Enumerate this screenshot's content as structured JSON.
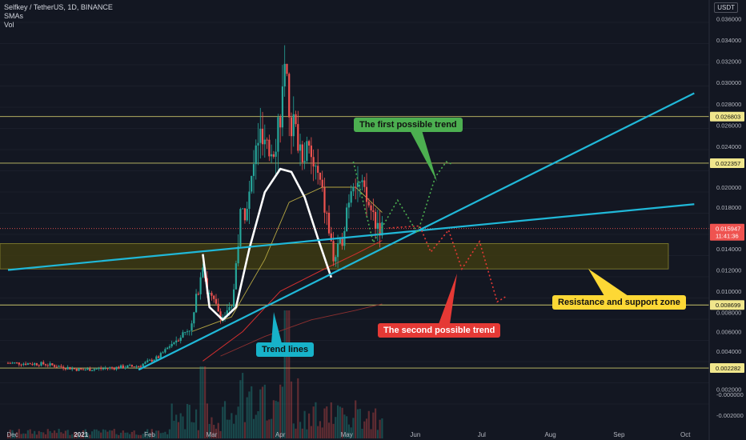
{
  "header": {
    "symbol": "Selfkey / TetherUS, 1D, BINANCE",
    "indicator1": "SMAs",
    "indicator2": "Vol"
  },
  "currency_button": "USDT",
  "annotations": {
    "first_trend": "The first possible trend",
    "second_trend": "The second possible trend",
    "trend_lines": "Trend lines",
    "zone": "Resistance and support zone"
  },
  "colors": {
    "background": "#131722",
    "up": "#26a69a",
    "down": "#ef5350",
    "trendline": "#20b8d8",
    "hline": "#c8c46a",
    "zone": "#3d3a12",
    "first_trend": "#4caf50",
    "second_trend": "#e53935",
    "zone_label": "#fdd835",
    "trend_label": "#17b2c9"
  },
  "chart_data": {
    "type": "candlestick",
    "title": "Selfkey / TetherUS, 1D, BINANCE",
    "x_ticks": [
      "Dec",
      "2021",
      "Feb",
      "Mar",
      "Apr",
      "May",
      "Jun",
      "Jul",
      "Aug",
      "Sep",
      "Oct"
    ],
    "y_ticks": [
      "0.036000",
      "0.034000",
      "0.032000",
      "0.030000",
      "0.028000",
      "0.026000",
      "0.024000",
      "0.020000",
      "0.018000",
      "0.014000",
      "0.012000",
      "0.010000",
      "0.008000",
      "0.006000",
      "0.004000",
      "0.002000",
      "0.000000",
      "-0.000000",
      "-0.002000"
    ],
    "ylim": [
      -0.0025,
      0.0365
    ],
    "horizontal_levels": [
      {
        "label": "0.026803",
        "value": 0.026803
      },
      {
        "label": "0.022357",
        "value": 0.022357
      },
      {
        "label": "0.008699",
        "value": 0.008699
      },
      {
        "label": "0.002282",
        "value": 0.002282
      }
    ],
    "current_price": {
      "label": "0.015947",
      "countdown": "11:41:36",
      "value": 0.015947
    },
    "zone": {
      "low": 0.0121,
      "high": 0.0145
    },
    "price_path": [
      [
        "2020-11-29",
        0.0028
      ],
      [
        "2020-12-15",
        0.0027
      ],
      [
        "2021-01-01",
        0.0021
      ],
      [
        "2021-01-15",
        0.0023
      ],
      [
        "2021-01-27",
        0.0025
      ],
      [
        "2021-02-05",
        0.0034
      ],
      [
        "2021-02-12",
        0.005
      ],
      [
        "2021-02-20",
        0.0066
      ],
      [
        "2021-02-25",
        0.013
      ],
      [
        "2021-02-27",
        0.01
      ],
      [
        "2021-03-02",
        0.0088
      ],
      [
        "2021-03-06",
        0.0075
      ],
      [
        "2021-03-10",
        0.0082
      ],
      [
        "2021-03-14",
        0.017
      ],
      [
        "2021-03-18",
        0.019
      ],
      [
        "2021-03-22",
        0.025
      ],
      [
        "2021-03-26",
        0.023
      ],
      [
        "2021-03-30",
        0.025
      ],
      [
        "2021-04-03",
        0.03
      ],
      [
        "2021-04-06",
        0.0265
      ],
      [
        "2021-04-10",
        0.024
      ],
      [
        "2021-04-14",
        0.023
      ],
      [
        "2021-04-18",
        0.021
      ],
      [
        "2021-04-22",
        0.017
      ],
      [
        "2021-04-25",
        0.013
      ],
      [
        "2021-04-28",
        0.014
      ],
      [
        "2021-05-01",
        0.018
      ],
      [
        "2021-05-04",
        0.0215
      ],
      [
        "2021-05-07",
        0.02
      ],
      [
        "2021-05-10",
        0.0185
      ],
      [
        "2021-05-14",
        0.0168
      ],
      [
        "2021-05-17",
        0.0159
      ]
    ],
    "sma_fast": [
      [
        "2021-02-20",
        0.006
      ],
      [
        "2021-03-10",
        0.0075
      ],
      [
        "2021-03-25",
        0.013
      ],
      [
        "2021-04-05",
        0.0185
      ],
      [
        "2021-04-20",
        0.02
      ],
      [
        "2021-05-05",
        0.02
      ],
      [
        "2021-05-17",
        0.0175
      ]
    ],
    "sma_mid": [
      [
        "2021-02-25",
        0.003
      ],
      [
        "2021-03-15",
        0.006
      ],
      [
        "2021-04-01",
        0.01
      ],
      [
        "2021-04-20",
        0.012
      ],
      [
        "2021-05-05",
        0.0135
      ],
      [
        "2021-05-17",
        0.0148
      ]
    ],
    "sma_slow": [
      [
        "2021-03-05",
        0.0035
      ],
      [
        "2021-03-25",
        0.0055
      ],
      [
        "2021-04-15",
        0.0072
      ],
      [
        "2021-05-05",
        0.0082
      ],
      [
        "2021-05-17",
        0.0088
      ]
    ],
    "trend_lines": [
      {
        "from": [
          "2020-11-29",
          0.012
        ],
        "to": [
          "2021-10-05",
          0.0183
        ]
      },
      {
        "from": [
          "2021-01-27",
          0.0021
        ],
        "to": [
          "2021-10-05",
          0.029
        ]
      }
    ],
    "first_trend_path": [
      [
        "2021-05-04",
        0.0225
      ],
      [
        "2021-05-13",
        0.0146
      ],
      [
        "2021-05-24",
        0.0187
      ],
      [
        "2021-06-02",
        0.0155
      ],
      [
        "2021-06-10",
        0.021
      ],
      [
        "2021-06-15",
        0.0225
      ],
      [
        "2021-06-18",
        0.0222
      ]
    ],
    "second_trend_path": [
      [
        "2021-05-20",
        0.016
      ],
      [
        "2021-06-03",
        0.0162
      ],
      [
        "2021-06-08",
        0.0137
      ],
      [
        "2021-06-16",
        0.0158
      ],
      [
        "2021-06-22",
        0.0121
      ],
      [
        "2021-06-30",
        0.0147
      ],
      [
        "2021-07-08",
        0.009
      ],
      [
        "2021-07-12",
        0.0095
      ]
    ]
  }
}
